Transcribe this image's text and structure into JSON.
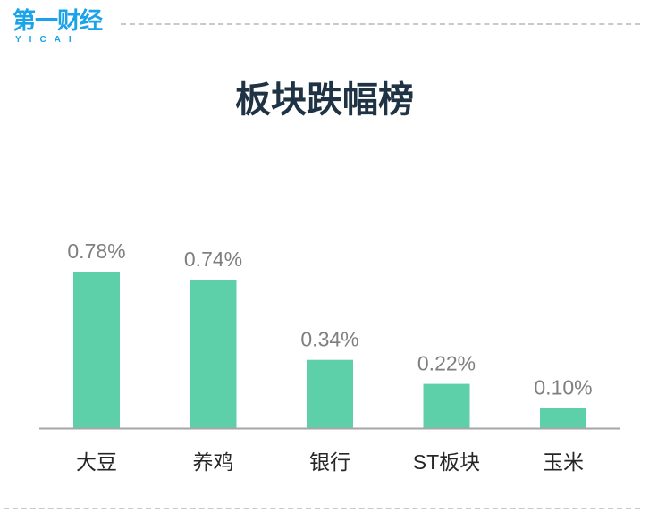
{
  "brand": {
    "name": "第一财经",
    "sub": "YICAI",
    "color": "#1aa3e8"
  },
  "page": {
    "title": "板块跌幅榜"
  },
  "chart_data": {
    "type": "bar",
    "title": "板块跌幅榜",
    "categories": [
      "大豆",
      "养鸡",
      "银行",
      "ST板块",
      "玉米"
    ],
    "values": [
      0.78,
      0.74,
      0.34,
      0.22,
      0.1
    ],
    "value_labels": [
      "0.78%",
      "0.74%",
      "0.34%",
      "0.22%",
      "0.10%"
    ],
    "unit": "%",
    "xlabel": "",
    "ylabel": "",
    "ylim": [
      0,
      0.78
    ],
    "grid": false,
    "legend": "none",
    "bar_color": "#5dd0aa",
    "axis_color": "#a6a6a6"
  }
}
